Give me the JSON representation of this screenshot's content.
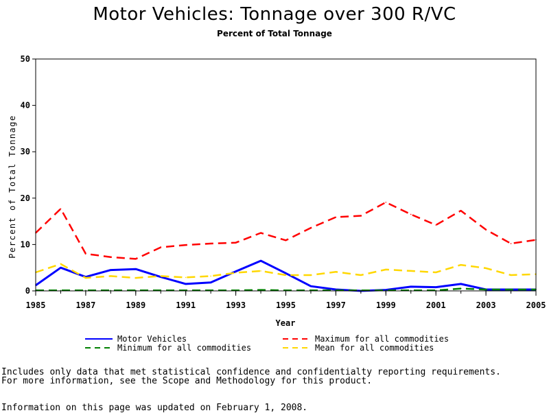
{
  "header": {
    "title": "Motor Vehicles: Tonnage over 300 R/VC",
    "subtitle": "Percent of Total Tonnage"
  },
  "chart_data": {
    "type": "line",
    "title": "Motor Vehicles: Tonnage over 300 R/VC",
    "subtitle": "Percent of Total Tonnage",
    "xlabel": "Year",
    "ylabel": "Percent of Total Tonnage",
    "xlim": [
      1985,
      2005
    ],
    "ylim": [
      0,
      50
    ],
    "xticks": [
      "1985",
      "1987",
      "1989",
      "1991",
      "1993",
      "1995",
      "1997",
      "1999",
      "2001",
      "2003",
      "2005"
    ],
    "yticks": [
      "0",
      "10",
      "20",
      "30",
      "40",
      "50"
    ],
    "grid": false,
    "legend_position": "bottom",
    "x": [
      1985,
      1986,
      1987,
      1988,
      1989,
      1990,
      1991,
      1992,
      1993,
      1994,
      1995,
      1996,
      1997,
      1998,
      1999,
      2000,
      2001,
      2002,
      2003,
      2004,
      2005
    ],
    "series": [
      {
        "name": "Motor Vehicles",
        "color": "#0000ff",
        "style": "solid",
        "values": [
          1.2,
          5.0,
          3.0,
          4.5,
          4.7,
          3.0,
          1.5,
          1.8,
          4.2,
          6.5,
          3.8,
          1.0,
          0.3,
          0.0,
          0.2,
          0.9,
          0.8,
          1.5,
          0.3,
          0.3,
          0.3
        ]
      },
      {
        "name": "Maximum for all commodities",
        "color": "#ff0000",
        "style": "dashed",
        "values": [
          12.5,
          17.7,
          8.0,
          7.3,
          6.9,
          9.4,
          9.9,
          10.2,
          10.4,
          12.5,
          10.9,
          13.6,
          15.9,
          16.2,
          19.1,
          16.5,
          14.2,
          17.3,
          13.2,
          10.2,
          11.0
        ]
      },
      {
        "name": "Minimum for all commodities",
        "color": "#008000",
        "style": "dashed",
        "values": [
          0.1,
          0.1,
          0.1,
          0.1,
          0.1,
          0.1,
          0.1,
          0.1,
          0.1,
          0.2,
          0.1,
          0.1,
          0.1,
          0.1,
          0.1,
          0.1,
          0.1,
          0.5,
          0.3,
          0.3,
          0.3
        ]
      },
      {
        "name": "Mean for all commodities",
        "color": "#ffd700",
        "style": "dashed",
        "values": [
          4.0,
          5.8,
          2.8,
          3.2,
          2.8,
          3.2,
          2.9,
          3.2,
          3.9,
          4.3,
          3.4,
          3.4,
          4.1,
          3.4,
          4.6,
          4.3,
          4.0,
          5.6,
          4.9,
          3.4,
          3.6
        ]
      }
    ]
  },
  "footer": {
    "note_line1": "Includes only data that met statistical confidence and confidentialty reporting requirements.",
    "note_line2": "For more information, see the Scope and Methodology for this product.",
    "updated": "Information on this page was updated on February 1, 2008."
  }
}
